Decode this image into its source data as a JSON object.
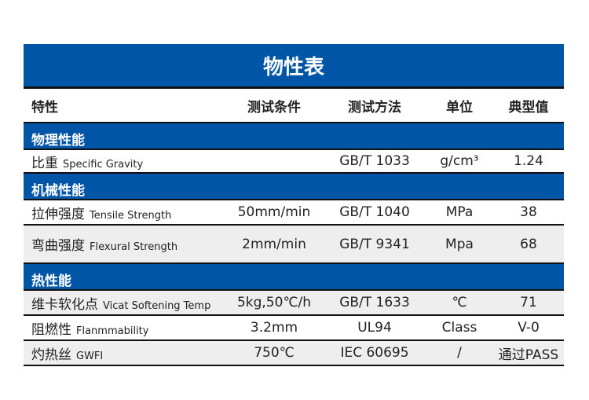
{
  "title": "物性表",
  "headers": [
    "特性",
    "测试条件",
    "测试方法",
    "单位",
    "典型值"
  ],
  "sections": [
    {
      "name": "物理性能",
      "rows": [
        {
          "zh": "比重",
          "en": "Specific Gravity",
          "condition": "",
          "method": "GB/T 1033",
          "unit": "g/cm³",
          "value": "1.24"
        }
      ]
    },
    {
      "name": "机械性能",
      "rows": [
        {
          "zh": "拉伸强度",
          "en": "Tensile Strength",
          "condition": "50mm/min",
          "method": "GB/T 1040",
          "unit": "MPa",
          "value": "38"
        },
        {
          "zh": "弯曲强度",
          "en": "Flexural Strength",
          "condition": "2mm/min",
          "method": "GB/T 9341",
          "unit": "Mpa",
          "value": "68"
        }
      ]
    },
    {
      "name": "热性能",
      "rows": [
        {
          "zh": "维卡软化点",
          "en": "Vicat Softening Temp",
          "condition": "5kg,50℃/h",
          "method": "GB/T 1633",
          "unit": "℃",
          "value": "71"
        },
        {
          "zh": "阻燃性",
          "en": "Flanmmability",
          "condition": "3.2mm",
          "method": "UL94",
          "unit": "Class",
          "value": "V-0"
        },
        {
          "zh": "灼热丝",
          "en": "GWFI",
          "condition": "750℃",
          "method": "IEC 60695",
          "unit": "/",
          "value": "通过PASS"
        }
      ]
    }
  ],
  "colors": {
    "header_blue": "#0055a6",
    "row_gray": "#eeeeee"
  }
}
